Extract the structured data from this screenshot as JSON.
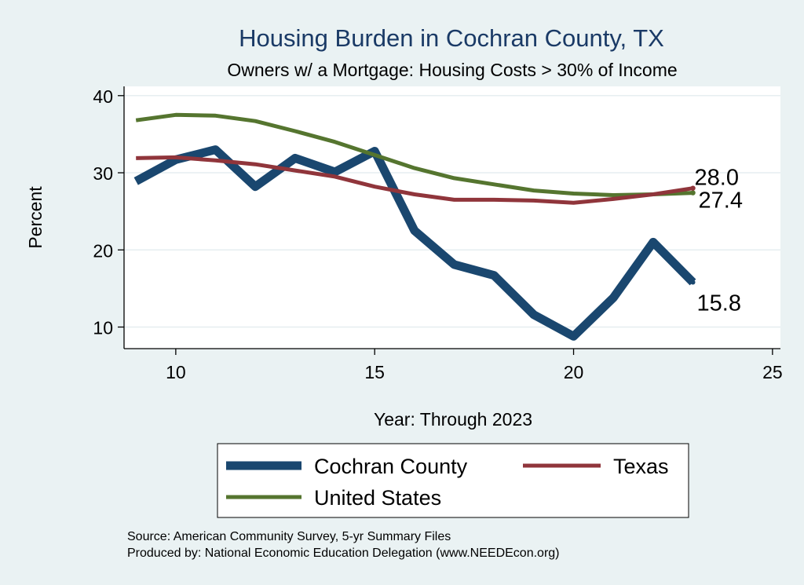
{
  "chart_data": {
    "type": "line",
    "title": "Housing Burden in Cochran County, TX",
    "subtitle": "Owners w/ a Mortgage: Housing Costs > 30% of Income",
    "xlabel": "Year: Through 2023",
    "ylabel": "Percent",
    "xlim": [
      8.7,
      25.2
    ],
    "ylim": [
      7.2,
      41.2
    ],
    "xticks": [
      10,
      15,
      20,
      25
    ],
    "yticks": [
      10,
      20,
      30,
      40
    ],
    "grid": true,
    "legend_position": "bottom",
    "x": [
      9,
      10,
      11,
      12,
      13,
      14,
      15,
      16,
      17,
      18,
      19,
      20,
      21,
      22,
      23
    ],
    "series": [
      {
        "name": "Cochran County",
        "color": "#1a476f",
        "values": [
          28.9,
          31.7,
          33.0,
          28.2,
          31.9,
          30.1,
          32.8,
          22.5,
          18.1,
          16.7,
          11.6,
          8.8,
          13.8,
          21.0,
          15.8
        ],
        "end_label": "15.8"
      },
      {
        "name": "Texas",
        "color": "#90353b",
        "values": [
          31.9,
          32.0,
          31.6,
          31.1,
          30.3,
          29.5,
          28.2,
          27.2,
          26.5,
          26.5,
          26.4,
          26.1,
          26.6,
          27.2,
          28.0
        ],
        "end_label": "28.0"
      },
      {
        "name": "United States",
        "color": "#55752f",
        "values": [
          36.8,
          37.5,
          37.4,
          36.7,
          35.4,
          34.0,
          32.3,
          30.6,
          29.3,
          28.5,
          27.7,
          27.3,
          27.1,
          27.2,
          27.4
        ],
        "end_label": "27.4"
      }
    ]
  },
  "source_note": "Source: American Community Survey, 5-yr Summary Files",
  "producer_note": "Produced by: National Economic Education Delegation (www.NEEDEcon.org)"
}
